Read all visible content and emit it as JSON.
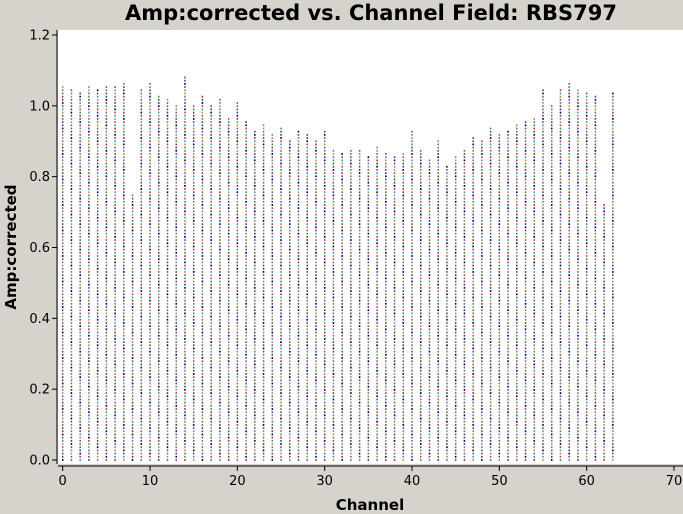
{
  "chart_data": {
    "type": "scatter",
    "title": "Amp:corrected vs. Channel Field: RBS797",
    "xlabel": "Channel",
    "ylabel": "Amp:corrected",
    "xlim": [
      0,
      70
    ],
    "ylim": [
      0,
      1.2
    ],
    "xticks": [
      "0",
      "10",
      "20",
      "30",
      "40",
      "50",
      "60",
      "70"
    ],
    "yticks": [
      "0.0",
      "0.2",
      "0.4",
      "0.6",
      "0.8",
      "1.0",
      "1.2"
    ],
    "grid": false,
    "background": "#ffffff",
    "frame_color": "#d6d2cc",
    "point_colors": [
      "#000000",
      "#1f3fbf",
      "#bf1f1f",
      "#1f9f3f",
      "#9f3fbf",
      "#bf8f1f",
      "#1fa0bf",
      "#bf1f8f"
    ],
    "series": [
      {
        "x": [
          0,
          1,
          2,
          3,
          4,
          5,
          6,
          7,
          8,
          9,
          10,
          11,
          12,
          13,
          14,
          15,
          16,
          17,
          18,
          19,
          20,
          21,
          22,
          23,
          24,
          25,
          26,
          27,
          28,
          29,
          30,
          31,
          32,
          33,
          34,
          35,
          36,
          37,
          38,
          39,
          40,
          41,
          42,
          43,
          44,
          45,
          46,
          47,
          48,
          49,
          50,
          51,
          52,
          53,
          54,
          55,
          56,
          57,
          58,
          59,
          60,
          61,
          62,
          63
        ],
        "y_min": [
          0,
          0,
          0,
          0,
          0,
          0,
          0,
          0,
          0,
          0,
          0,
          0,
          0,
          0,
          0,
          0,
          0,
          0,
          0,
          0,
          0,
          0,
          0,
          0,
          0,
          0,
          0,
          0,
          0,
          0,
          0,
          0,
          0,
          0,
          0,
          0,
          0,
          0,
          0,
          0,
          0,
          0,
          0,
          0,
          0,
          0,
          0,
          0,
          0,
          0,
          0,
          0,
          0,
          0,
          0,
          0,
          0,
          0,
          0,
          0,
          0,
          0,
          0,
          0
        ],
        "y_max": [
          1.06,
          1.05,
          1.04,
          1.06,
          1.05,
          1.06,
          1.06,
          1.07,
          0.75,
          1.05,
          1.07,
          1.03,
          1.02,
          1.0,
          1.08,
          1.0,
          1.03,
          1.0,
          1.02,
          0.97,
          1.01,
          0.96,
          0.93,
          0.95,
          0.92,
          0.94,
          0.9,
          0.93,
          0.92,
          0.9,
          0.93,
          0.88,
          0.87,
          0.88,
          0.88,
          0.86,
          0.89,
          0.87,
          0.86,
          0.87,
          0.93,
          0.88,
          0.85,
          0.9,
          0.83,
          0.86,
          0.88,
          0.91,
          0.9,
          0.94,
          0.92,
          0.93,
          0.95,
          0.96,
          0.97,
          1.05,
          1.0,
          1.05,
          1.07,
          1.05,
          1.04,
          1.03,
          0.72,
          1.04
        ]
      }
    ]
  }
}
